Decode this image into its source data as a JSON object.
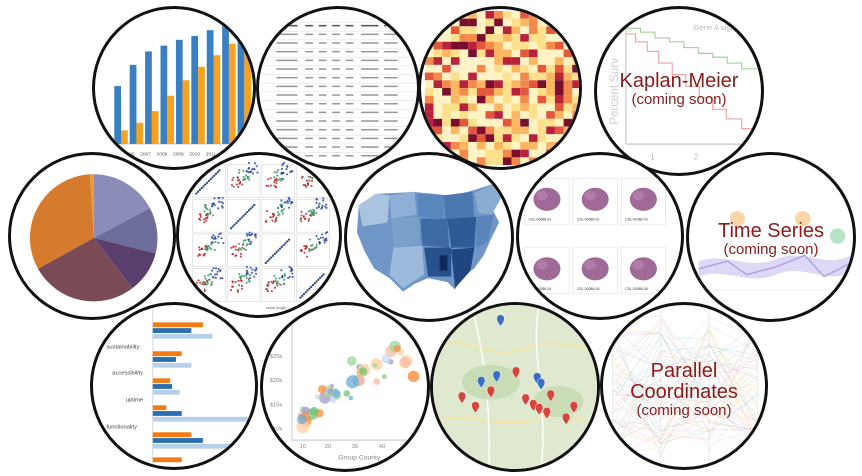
{
  "gallery": {
    "kaplan_meier": {
      "title": "Kaplan-Meier",
      "subtitle": "(coming soon)",
      "bg_axis_label": "Percent Surv",
      "bg_legend": "Gene A signat",
      "bg_xlabel": "Yea",
      "bg_ticks": [
        "1",
        "2"
      ]
    },
    "time_series": {
      "title": "Time Series",
      "subtitle": "(coming soon)"
    },
    "parallel_coordinates": {
      "title_line1": "Parallel",
      "title_line2": "Coordinates",
      "subtitle": "(coming soon)"
    },
    "bar_years": [
      "2006",
      "2007",
      "2008",
      "2009",
      "2010",
      "2011",
      "2012"
    ],
    "hbar_labels": [
      "sustainability",
      "accessibility",
      "uptime",
      "functionality"
    ],
    "bubble_xlabel": "Group County",
    "bubble_yticks": [
      "$30k",
      "$25k",
      "$20k",
      "$15k",
      "$10k"
    ],
    "bubble_xticks": [
      "10",
      "20",
      "30",
      "40"
    ],
    "slide_labels": [
      "CSL-00086-01",
      "CSL-00086-02",
      "CSL-00086-03",
      "CSL-00086-04",
      "CSL-00086-05",
      "CSL-00086-06"
    ],
    "scatter_matrix_labels": [
      "sepal width",
      "sepal length"
    ],
    "colors": {
      "blue": "#3a7fc1",
      "orange": "#f6a21e",
      "dark_red": "#8b1a1a",
      "map_blue": "#4f7fb5"
    }
  }
}
